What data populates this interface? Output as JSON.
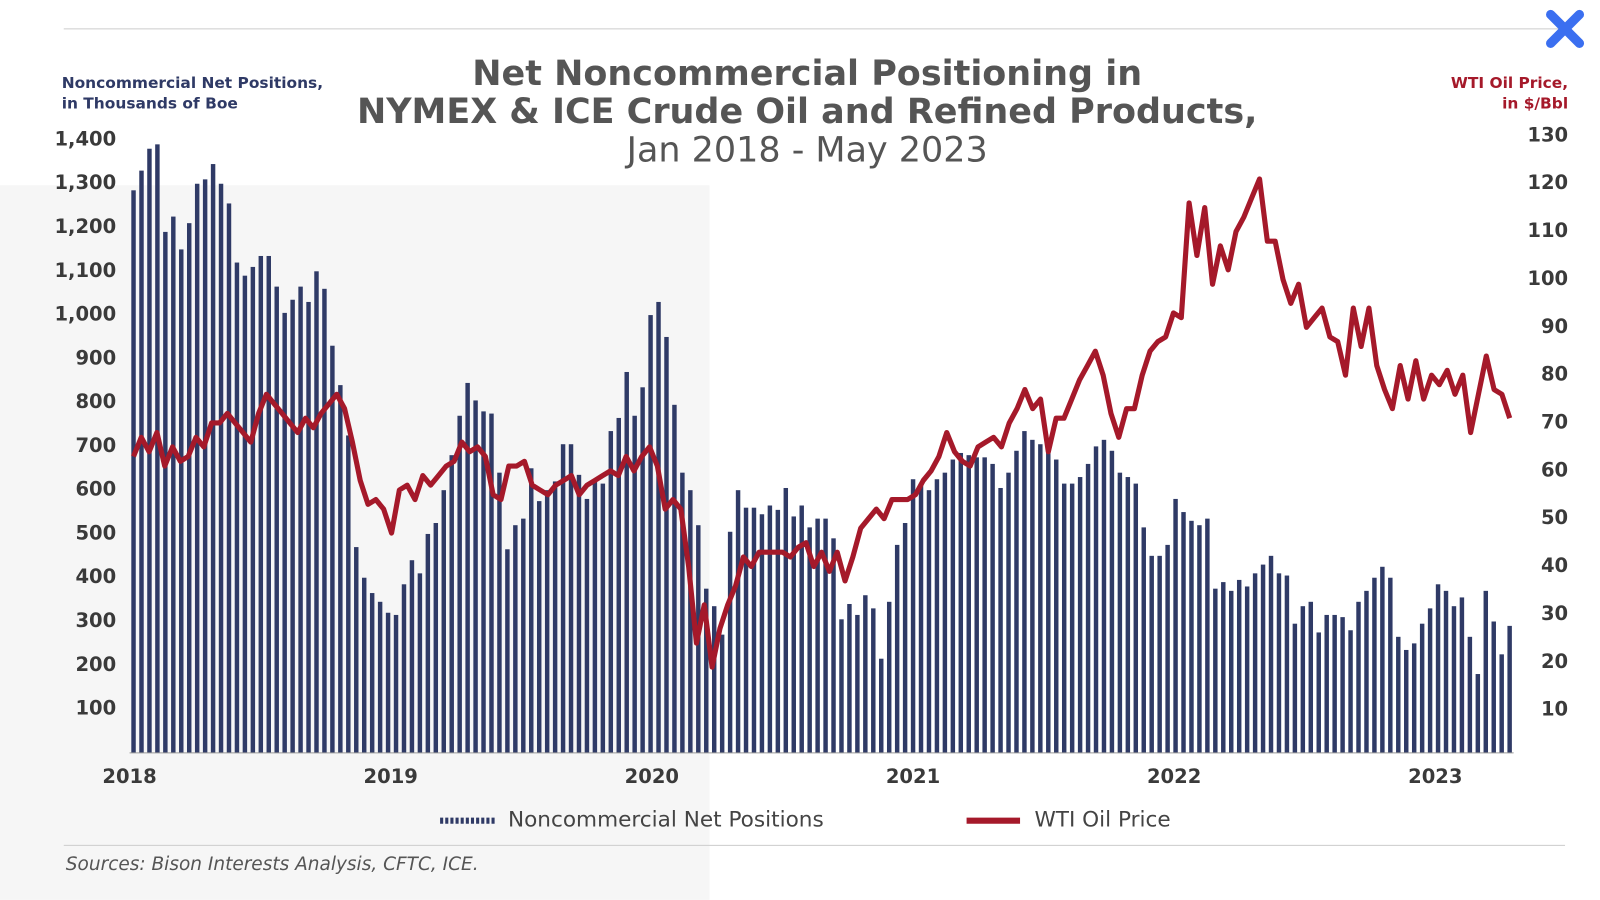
{
  "chart_data": {
    "type": "bar_line",
    "title": [
      "Net Noncommercial Positioning in",
      "NYMEX & ICE Crude Oil and Refined Products,",
      "Jan 2018 - May 2023"
    ],
    "ylabel": [
      "Noncommercial Net Positions,",
      "in Thousands of Boe"
    ],
    "y2label": [
      "WTI Oil Price,",
      "in $/Bbl"
    ],
    "source": "Sources: Bison Interests Analysis, CFTC, ICE.",
    "xlim": [
      2018,
      2023.3
    ],
    "xticks": [
      2018,
      2019,
      2020,
      2021,
      2022,
      2023
    ],
    "ylim": [
      0,
      1400
    ],
    "yticks": [
      100,
      200,
      300,
      400,
      500,
      600,
      700,
      800,
      900,
      {
        "value": 1000,
        "label": "1,000"
      },
      {
        "value": 1100,
        "label": "1,100"
      },
      {
        "value": 1200,
        "label": "1,200"
      },
      {
        "value": 1300,
        "label": "1,300"
      },
      {
        "value": 1400,
        "label": "1,400"
      }
    ],
    "y2lim": [
      0,
      130
    ],
    "y2ticks": [
      10,
      20,
      30,
      40,
      50,
      60,
      70,
      80,
      90,
      100,
      110,
      120,
      130
    ],
    "series": [
      {
        "name": "Noncommercial Net Positions",
        "type": "bar",
        "color": "#2f3a66",
        "values": [
          1285,
          1330,
          1380,
          1390,
          1190,
          1225,
          1150,
          1210,
          1300,
          1310,
          1345,
          1300,
          1255,
          1120,
          1090,
          1110,
          1135,
          1135,
          1065,
          1005,
          1035,
          1065,
          1030,
          1100,
          1060,
          930,
          840,
          725,
          470,
          400,
          365,
          345,
          320,
          315,
          385,
          440,
          410,
          500,
          525,
          600,
          680,
          770,
          845,
          805,
          780,
          775,
          640,
          465,
          520,
          535,
          650,
          575,
          600,
          620,
          705,
          705,
          635,
          580,
          625,
          615,
          735,
          765,
          870,
          770,
          835,
          1000,
          1030,
          950,
          795,
          640,
          600,
          520,
          375,
          335,
          270,
          505,
          600,
          560,
          560,
          545,
          565,
          555,
          605,
          540,
          565,
          515,
          535,
          535,
          490,
          305,
          340,
          315,
          360,
          330,
          215,
          345,
          475,
          525,
          625,
          615,
          600,
          625,
          640,
          670,
          685,
          680,
          675,
          675,
          660,
          605,
          640,
          690,
          735,
          715,
          705,
          690,
          670,
          615,
          615,
          630,
          660,
          700,
          715,
          690,
          640,
          630,
          615,
          515,
          450,
          450,
          475,
          580,
          550,
          530,
          520,
          535,
          375,
          390,
          370,
          395,
          380,
          410,
          430,
          450,
          410,
          405,
          295,
          335,
          345,
          275,
          315,
          315,
          310,
          280,
          345,
          370,
          400,
          425,
          400,
          265,
          235,
          250,
          295,
          330,
          385,
          370,
          335,
          355,
          265,
          180,
          370,
          300,
          225,
          290
        ]
      },
      {
        "name": "WTI Oil Price",
        "type": "line",
        "axis": "y2",
        "color": "#a5192a",
        "values": [
          63,
          67,
          64,
          68,
          61,
          65,
          62,
          63,
          67,
          65,
          70,
          70,
          72,
          70,
          68,
          66,
          72,
          76,
          74,
          72,
          70,
          68,
          71,
          69,
          72,
          74,
          76,
          73,
          66,
          58,
          53,
          54,
          52,
          47,
          56,
          57,
          54,
          59,
          57,
          59,
          61,
          62,
          66,
          64,
          65,
          63,
          55,
          54,
          61,
          61,
          62,
          57,
          56,
          55,
          57,
          58,
          59,
          55,
          57,
          58,
          59,
          60,
          59,
          63,
          60,
          63,
          65,
          61,
          52,
          54,
          52,
          40,
          24,
          32,
          19,
          27,
          32,
          36,
          42,
          40,
          43,
          43,
          43,
          43,
          42,
          44,
          45,
          40,
          43,
          39,
          43,
          37,
          42,
          48,
          50,
          52,
          50,
          54,
          54,
          54,
          55,
          58,
          60,
          63,
          68,
          64,
          62,
          61,
          65,
          66,
          67,
          65,
          70,
          73,
          77,
          73,
          75,
          64,
          71,
          71,
          75,
          79,
          82,
          85,
          80,
          72,
          67,
          73,
          73,
          80,
          85,
          87,
          88,
          93,
          92,
          116,
          105,
          115,
          99,
          107,
          102,
          110,
          113,
          117,
          121,
          108,
          108,
          100,
          95,
          99,
          90,
          92,
          94,
          88,
          87,
          80,
          94,
          86,
          94,
          82,
          77,
          73,
          82,
          75,
          83,
          75,
          80,
          78,
          81,
          76,
          80,
          68,
          76,
          84,
          77,
          76,
          71
        ]
      }
    ]
  }
}
